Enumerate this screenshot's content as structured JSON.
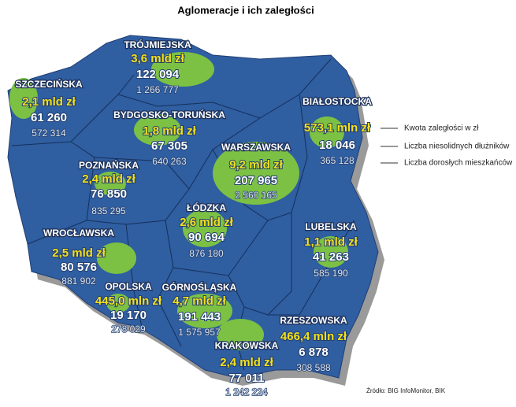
{
  "title": "Aglomeracje i ich zaległości",
  "regions": [
    {
      "name": "TRÓJMIEJSKA",
      "debt": "3,6 mld zł",
      "debtors": "122 094",
      "adults": "1 266 777"
    },
    {
      "name": "SZCZECIŃSKA",
      "debt": "2,1 mld zł",
      "debtors": "61 260",
      "adults": "572 314"
    },
    {
      "name": "BYDGOSKO-TORUŃSKA",
      "debt": "1,8 mld zł",
      "debtors": "67 305",
      "adults": "640 263"
    },
    {
      "name": "BIAŁOSTOCKA",
      "debt": "573,1 mln zł",
      "debtors": "18 046",
      "adults": "365 128"
    },
    {
      "name": "POZNAŃSKA",
      "debt": "2,4 mld zł",
      "debtors": "76 850",
      "adults": "835 295"
    },
    {
      "name": "WARSZAWSKA",
      "debt": "9,2 mld zł",
      "debtors": "207 965",
      "adults": "2 560 165"
    },
    {
      "name": "ŁÓDZKA",
      "debt": "2,6 mld zł",
      "debtors": "90 694",
      "adults": "876 180"
    },
    {
      "name": "LUBELSKA",
      "debt": "1,1 mld zł",
      "debtors": "41 263",
      "adults": "585 190"
    },
    {
      "name": "WROCŁAWSKA",
      "debt": "2,5 mld zł",
      "debtors": "80 576",
      "adults": "881 902"
    },
    {
      "name": "OPOLSKA",
      "debt": "445,0 mln zł",
      "debtors": "19 170",
      "adults": "278 029"
    },
    {
      "name": "GÓRNOŚLĄSKA",
      "debt": "4,7 mld zł",
      "debtors": "191 443",
      "adults": "1 575 957"
    },
    {
      "name": "KRAKOWSKA",
      "debt": "2,4 mld zł",
      "debtors": "77 011",
      "adults": "1 242 224"
    },
    {
      "name": "RZESZOWSKA",
      "debt": "466,4 mln zł",
      "debtors": "6 878",
      "adults": "308 588"
    }
  ],
  "legend": [
    "Kwota zaległości w zł",
    "Liczba niesolidnych dłużników",
    "Liczba dorosłych mieszkańców"
  ],
  "source": "Źródło: BIG InfoMonitor, BIK"
}
